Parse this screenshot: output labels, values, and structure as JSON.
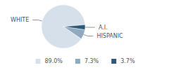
{
  "chart_data": {
    "type": "pie",
    "categories": [
      "WHITE",
      "HISPANIC",
      "A.I."
    ],
    "values": [
      89.0,
      7.3,
      3.7
    ],
    "value_labels": [
      "89.0%",
      "7.3%",
      "3.7%"
    ],
    "colors": [
      "#d5e0ea",
      "#8fa9bf",
      "#2d5a7b"
    ],
    "legend": "bottom"
  }
}
